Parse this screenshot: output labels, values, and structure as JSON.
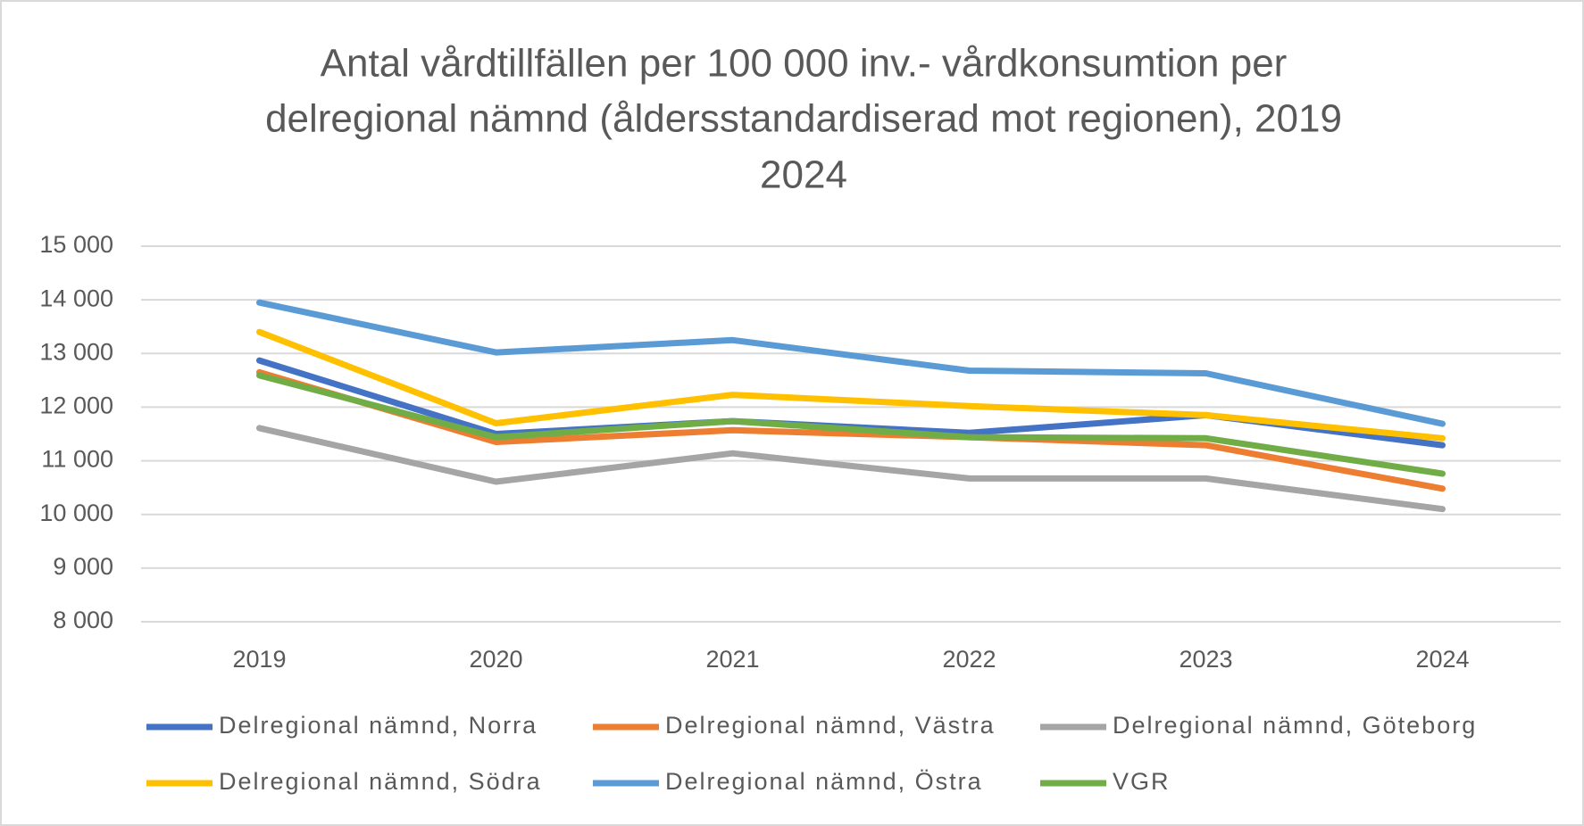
{
  "chart_data": {
    "type": "line",
    "title": [
      "Antal vårdtillfällen per 100 000 inv.- vårdkonsumtion per",
      "delregional nämnd (åldersstandardiserad mot regionen), 2019",
      "2024"
    ],
    "categories": [
      "2019",
      "2020",
      "2021",
      "2022",
      "2023",
      "2024"
    ],
    "series": [
      {
        "name": "Delregional nämnd, Norra",
        "color": "#4472c4",
        "values": [
          12870,
          11500,
          11740,
          11520,
          11850,
          11290
        ]
      },
      {
        "name": "Delregional nämnd, Västra",
        "color": "#ed7d31",
        "values": [
          12650,
          11350,
          11570,
          11440,
          11290,
          10480
        ]
      },
      {
        "name": "Delregional nämnd, Göteborg",
        "color": "#a5a5a5",
        "values": [
          11610,
          10610,
          11140,
          10670,
          10670,
          10100
        ]
      },
      {
        "name": "Delregional nämnd, Södra",
        "color": "#ffc000",
        "values": [
          13400,
          11700,
          12230,
          12020,
          11850,
          11420
        ]
      },
      {
        "name": "Delregional nämnd, Östra",
        "color": "#5b9bd5",
        "values": [
          13950,
          13020,
          13250,
          12680,
          12630,
          11690
        ]
      },
      {
        "name": "VGR",
        "color": "#70ad47",
        "values": [
          12590,
          11440,
          11740,
          11440,
          11420,
          10760
        ]
      }
    ],
    "ylim": [
      8000,
      15000
    ],
    "yticks": [
      {
        "value": 8000,
        "label": "8 000"
      },
      {
        "value": 9000,
        "label": "9 000"
      },
      {
        "value": 10000,
        "label": "10 000"
      },
      {
        "value": 11000,
        "label": "11 000"
      },
      {
        "value": 12000,
        "label": "12 000"
      },
      {
        "value": 13000,
        "label": "13 000"
      },
      {
        "value": 14000,
        "label": "14 000"
      },
      {
        "value": 15000,
        "label": "15 000"
      }
    ],
    "grid": true,
    "legend": "bottom"
  }
}
